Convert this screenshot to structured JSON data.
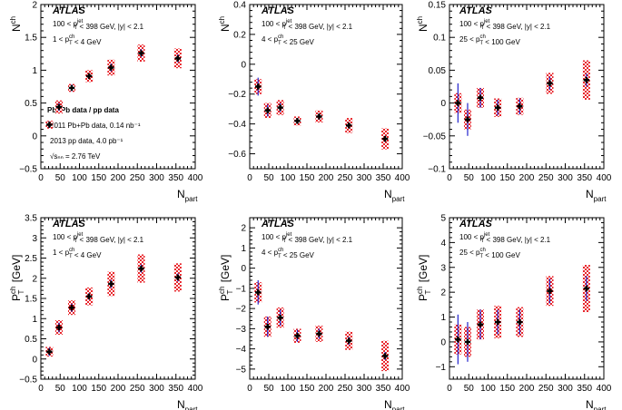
{
  "experiment_label": "ATLAS",
  "legend_note": {
    "title": "Pb+Pb data / pp data",
    "line1": "2011 Pb+Pb data, 0.14 nb⁻¹",
    "line2": "2013 pp data, 4.0 pb⁻¹",
    "line3": "√sₙₙ = 2.76 TeV"
  },
  "colors": {
    "marker": "#000000",
    "stat_error": "#2222cc",
    "sys_box": "#e8262c"
  },
  "chart_data": [
    {
      "type": "scatter",
      "xlabel": "N_part",
      "ylabel": "N^ch",
      "xlim": [
        0,
        400
      ],
      "ylim": [
        -0.5,
        2
      ],
      "xticks": [
        0,
        50,
        100,
        150,
        200,
        250,
        300,
        350,
        400
      ],
      "yticks": [
        -0.5,
        0,
        0.5,
        1,
        1.5,
        2
      ],
      "ytick_labels": [
        "−0.5",
        "0",
        "0.5",
        "1",
        "1.5",
        "2"
      ],
      "annotation": [
        "100 < p_T^jet < 398 GeV, |y| < 2.1",
        "1 < p_T^ch < 4 GeV"
      ],
      "x": [
        22,
        47,
        80,
        125,
        182,
        260,
        355
      ],
      "y": [
        0.17,
        0.44,
        0.73,
        0.91,
        1.04,
        1.26,
        1.18
      ],
      "stat_err": [
        0.05,
        0.06,
        0.05,
        0.04,
        0.06,
        0.06,
        0.06
      ],
      "sys_err": [
        0.06,
        0.1,
        0.06,
        0.09,
        0.12,
        0.13,
        0.15
      ]
    },
    {
      "type": "scatter",
      "xlabel": "N_part",
      "ylabel": "N^ch",
      "xlim": [
        0,
        400
      ],
      "ylim": [
        -0.7,
        0.4
      ],
      "xticks": [
        0,
        50,
        100,
        150,
        200,
        250,
        300,
        350,
        400
      ],
      "yticks": [
        -0.6,
        -0.4,
        -0.2,
        0,
        0.2,
        0.4
      ],
      "ytick_labels": [
        "−0.6",
        "−0.4",
        "−0.2",
        "0",
        "0.2",
        "0.4"
      ],
      "annotation": [
        "100 < p_T^jet < 398 GeV, |y| < 2.1",
        "4 < p_T^ch < 25 GeV"
      ],
      "x": [
        22,
        47,
        80,
        125,
        182,
        260,
        355
      ],
      "y": [
        -0.15,
        -0.31,
        -0.29,
        -0.38,
        -0.35,
        -0.41,
        -0.5
      ],
      "stat_err": [
        0.06,
        0.04,
        0.03,
        0.02,
        0.02,
        0.02,
        0.02
      ],
      "sys_err": [
        0.05,
        0.05,
        0.05,
        0.03,
        0.04,
        0.05,
        0.07
      ]
    },
    {
      "type": "scatter",
      "xlabel": "N_part",
      "ylabel": "N^ch",
      "xlim": [
        0,
        400
      ],
      "ylim": [
        -0.1,
        0.15
      ],
      "xticks": [
        0,
        50,
        100,
        150,
        200,
        250,
        300,
        350,
        400
      ],
      "yticks": [
        -0.1,
        -0.05,
        0,
        0.05,
        0.1,
        0.15
      ],
      "ytick_labels": [
        "−0.1",
        "−0.05",
        "0",
        "0.05",
        "0.1",
        "0.15"
      ],
      "annotation": [
        "100 < p_T^jet < 398 GeV, |y| < 2.1",
        "25 < p_T^ch < 100 GeV"
      ],
      "x": [
        22,
        47,
        80,
        125,
        182,
        260,
        355
      ],
      "y": [
        0.0,
        -0.025,
        0.008,
        -0.007,
        -0.005,
        0.03,
        0.035
      ],
      "stat_err": [
        0.03,
        0.025,
        0.015,
        0.012,
        0.012,
        0.01,
        0.01
      ],
      "sys_err": [
        0.015,
        0.015,
        0.015,
        0.014,
        0.013,
        0.016,
        0.03
      ]
    },
    {
      "type": "scatter",
      "xlabel": "N_part",
      "ylabel": "P_T^ch [GeV]",
      "xlim": [
        0,
        400
      ],
      "ylim": [
        -0.5,
        3.5
      ],
      "xticks": [
        0,
        50,
        100,
        150,
        200,
        250,
        300,
        350,
        400
      ],
      "yticks": [
        -0.5,
        0,
        0.5,
        1,
        1.5,
        2,
        2.5,
        3,
        3.5
      ],
      "ytick_labels": [
        "−0.5",
        "0",
        "0.5",
        "1",
        "1.5",
        "2",
        "2.5",
        "3",
        "3.5"
      ],
      "annotation": [
        "100 < p_T^jet < 398 GeV, |y| < 2.1",
        "1 < p_T^ch < 4 GeV"
      ],
      "x": [
        22,
        47,
        80,
        125,
        182,
        260,
        355
      ],
      "y": [
        0.18,
        0.78,
        1.27,
        1.55,
        1.86,
        2.24,
        2.02
      ],
      "stat_err": [
        0.1,
        0.12,
        0.1,
        0.08,
        0.1,
        0.1,
        0.1
      ],
      "sys_err": [
        0.12,
        0.18,
        0.18,
        0.22,
        0.3,
        0.35,
        0.35
      ]
    },
    {
      "type": "scatter",
      "xlabel": "N_part",
      "ylabel": "P_T^ch [GeV]",
      "xlim": [
        0,
        400
      ],
      "ylim": [
        -5.5,
        2.5
      ],
      "xticks": [
        0,
        50,
        100,
        150,
        200,
        250,
        300,
        350,
        400
      ],
      "yticks": [
        -5,
        -4,
        -3,
        -2,
        -1,
        0,
        1,
        2
      ],
      "ytick_labels": [
        "−5",
        "−4",
        "−3",
        "−2",
        "−1",
        "0",
        "1",
        "2"
      ],
      "annotation": [
        "100 < p_T^jet < 398 GeV, |y| < 2.1",
        "4 < p_T^ch < 25 GeV"
      ],
      "x": [
        22,
        47,
        80,
        125,
        182,
        260,
        355
      ],
      "y": [
        -1.2,
        -2.9,
        -2.45,
        -3.35,
        -3.25,
        -3.6,
        -4.35
      ],
      "stat_err": [
        0.6,
        0.5,
        0.4,
        0.3,
        0.25,
        0.2,
        0.2
      ],
      "sys_err": [
        0.5,
        0.5,
        0.5,
        0.35,
        0.4,
        0.45,
        0.75
      ]
    },
    {
      "type": "scatter",
      "xlabel": "N_part",
      "ylabel": "P_T^ch [GeV]",
      "xlim": [
        0,
        400
      ],
      "ylim": [
        -1.5,
        5
      ],
      "xticks": [
        0,
        50,
        100,
        150,
        200,
        250,
        300,
        350,
        400
      ],
      "yticks": [
        -1,
        0,
        1,
        2,
        3,
        4,
        5
      ],
      "ytick_labels": [
        "−1",
        "0",
        "1",
        "2",
        "3",
        "4",
        "5"
      ],
      "annotation": [
        "100 < p_T^jet < 398 GeV, |y| < 2.1",
        "25 < p_T^ch < 100 GeV"
      ],
      "x": [
        22,
        47,
        80,
        125,
        182,
        260,
        355
      ],
      "y": [
        0.1,
        0.0,
        0.7,
        0.8,
        0.8,
        2.05,
        2.15
      ],
      "stat_err": [
        1.0,
        0.8,
        0.6,
        0.5,
        0.5,
        0.5,
        0.5
      ],
      "sys_err": [
        0.6,
        0.6,
        0.6,
        0.65,
        0.6,
        0.6,
        0.95
      ]
    }
  ]
}
